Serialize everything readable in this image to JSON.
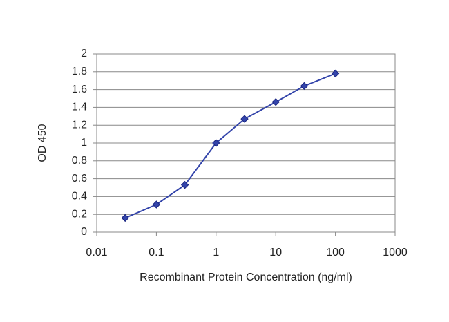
{
  "chart_data": {
    "type": "line",
    "x_label": "Recombinant Protein Concentration (ng/ml)",
    "y_label": "OD 450",
    "x": [
      0.03,
      0.1,
      0.3,
      1,
      3,
      10,
      30,
      100
    ],
    "series": [
      {
        "name": "OD 450",
        "color": "#3344aa",
        "values": [
          0.16,
          0.31,
          0.53,
          1.0,
          1.27,
          1.46,
          1.64,
          1.78
        ]
      }
    ],
    "xscale": "log",
    "xlim": [
      0.01,
      1000
    ],
    "xticks": [
      0.01,
      0.1,
      1,
      10,
      100,
      1000
    ],
    "ylim": [
      0,
      2
    ],
    "yticks": [
      0,
      0.2,
      0.4,
      0.6,
      0.8,
      1,
      1.2,
      1.4,
      1.6,
      1.8,
      2
    ],
    "grid": true
  }
}
